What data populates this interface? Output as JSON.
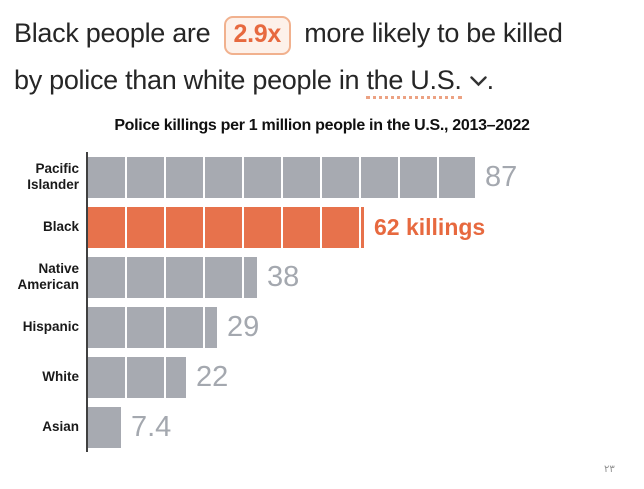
{
  "headline": {
    "line1_prefix": "Black people are",
    "multiplier": "2.9x",
    "line1_suffix": "more likely to be killed",
    "line2_prefix": "by police than white people in",
    "region": "the U.S.",
    "line2_suffix": "."
  },
  "chart_data": {
    "type": "bar",
    "orientation": "horizontal",
    "title": "Police killings per 1 million people in the U.S., 2013–2022",
    "categories": [
      "Pacific Islander",
      "Black",
      "Native American",
      "Hispanic",
      "White",
      "Asian"
    ],
    "values": [
      87,
      62,
      38,
      29,
      22,
      7.4
    ],
    "value_labels": [
      "87",
      "62 killings",
      "38",
      "29",
      "22",
      "7.4"
    ],
    "highlight_index": 1,
    "xlim": [
      0,
      90
    ],
    "grid": false,
    "legend": false,
    "bar_color": "#a7aab1",
    "highlight_color": "#e7724c",
    "segment_style": "white dividers every ~10 units"
  },
  "colors": {
    "accent_orange": "#e7724c",
    "accent_text_orange": "#e7693f",
    "bar_gray": "#a7aab1",
    "value_label_gray": "#a4a8af",
    "badge_background": "#fdf1ea",
    "badge_border": "#f1b18e",
    "dotted_underline": "#eca283",
    "headline_text": "#262626",
    "axis_line": "#404040"
  },
  "footer": {
    "page_marker": "٢٣"
  }
}
